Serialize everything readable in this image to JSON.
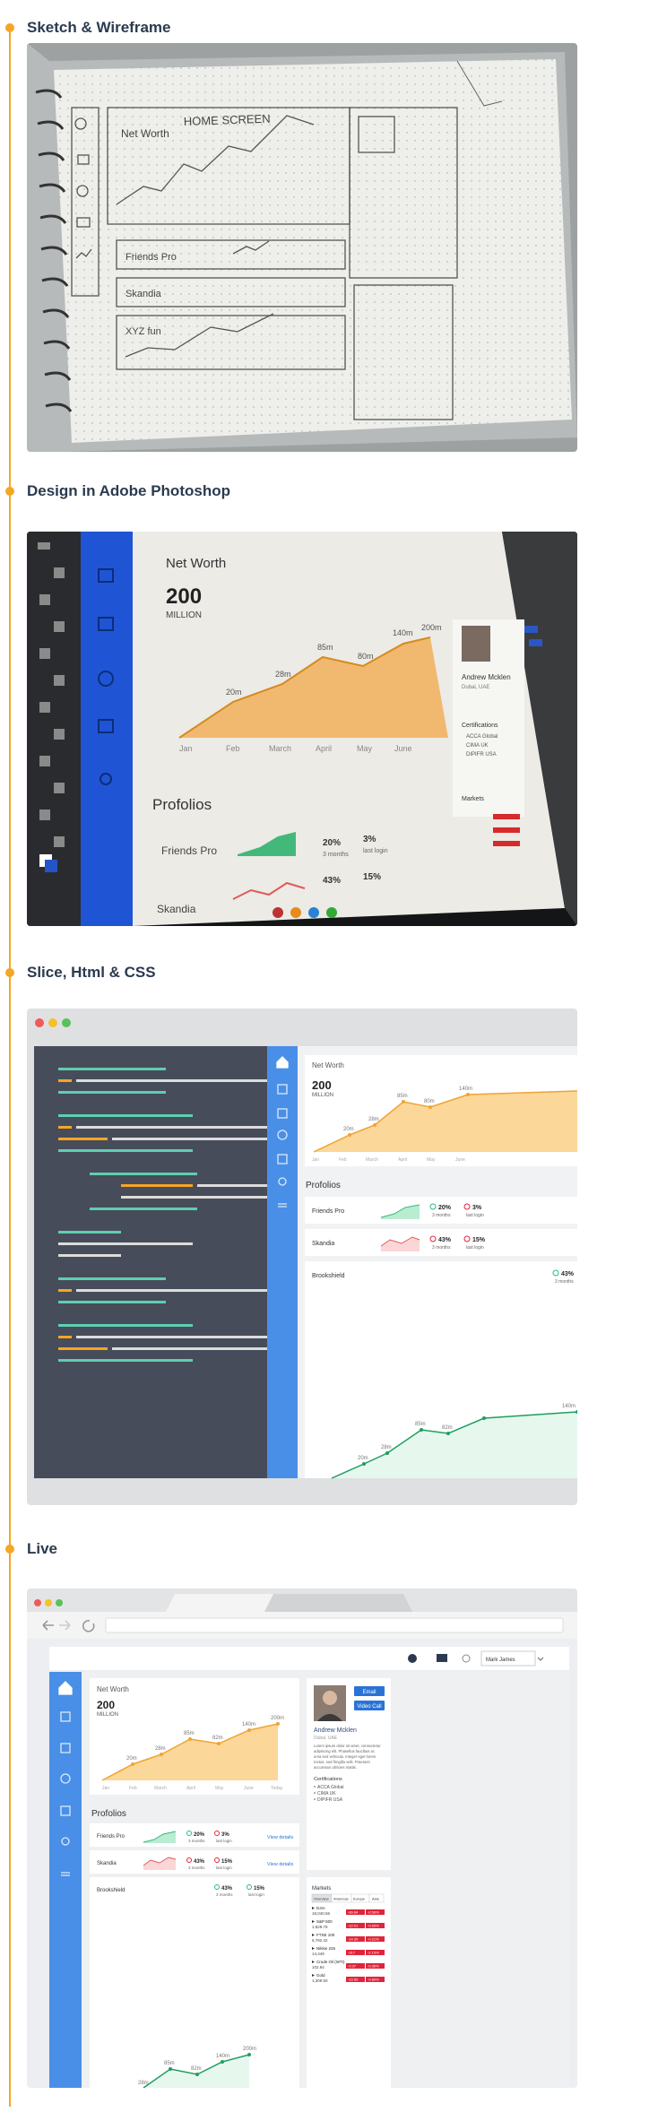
{
  "sections": [
    {
      "title": "Sketch & Wireframe"
    },
    {
      "title": "Design in Adobe Photoshop"
    },
    {
      "title": "Slice, Html & CSS"
    },
    {
      "title": "Live"
    }
  ],
  "colors": {
    "accent": "#f5a623",
    "heading": "#2b3a4f",
    "sidebar_blue": "#4a8fe7",
    "code_bg": "#474c5a",
    "green": "#29b97e",
    "red": "#e0253a"
  },
  "sketch": {
    "notebook_title": "HOME SCREEN",
    "net_worth": "Net Worth",
    "fund": "Friends Pro",
    "skandia": "Skandia",
    "xyz": "XYZ fun"
  },
  "photoshop": {
    "title": "Net Worth",
    "value": "200",
    "unit": "MILLION",
    "points": [
      "20m",
      "28m",
      "85m",
      "80m",
      "140m",
      "200m"
    ],
    "months": [
      "Jan",
      "Feb",
      "March",
      "April",
      "May",
      "June"
    ],
    "portfolios": "Profolios",
    "fund1": "Friends Pro",
    "fund2": "Skandia",
    "pct1": "20%",
    "pct2": "3%",
    "pct3": "43%",
    "pct4": "15%",
    "period": "3 months",
    "lastlogin": "last login",
    "person": "Andrew Mcklen",
    "person_loc": "Dubai, UAE",
    "certs": "Certifications",
    "cert_items": [
      "ACCA Global",
      "CIMA UK",
      "DIPIFR USA"
    ],
    "markets": "Markets"
  },
  "slice": {
    "net_worth": "Net Worth",
    "value": "200",
    "unit": "MILLION",
    "point_labels": [
      "20m",
      "28m",
      "85m",
      "80m",
      "140m"
    ],
    "months": [
      "Jan",
      "Feb",
      "March",
      "April",
      "May",
      "June"
    ],
    "portfolios": "Profolios",
    "funds": [
      {
        "name": "Friends Pro",
        "a": "20%",
        "a_sub": "3 months",
        "b": "3%",
        "b_sub": "last login"
      },
      {
        "name": "Skandia",
        "a": "43%",
        "a_sub": "3 months",
        "b": "15%",
        "b_sub": "last login"
      }
    ],
    "brookshield": {
      "name": "Brookshield",
      "a": "43%",
      "a_sub": "3 months",
      "points": [
        "20m",
        "28m",
        "85m",
        "82m",
        "140m"
      ]
    }
  },
  "live": {
    "user": "Mark James",
    "net_worth": "Net Worth",
    "value": "200",
    "unit": "MILLION",
    "point_labels": [
      "20m",
      "28m",
      "85m",
      "82m",
      "140m",
      "200m"
    ],
    "months": [
      "Jan",
      "Feb",
      "March",
      "April",
      "May",
      "June",
      "Today"
    ],
    "portfolios": "Profolios",
    "funds": [
      {
        "name": "Friends Pro",
        "a": "20%",
        "a_sub": "3 months",
        "b": "3%",
        "b_sub": "last login",
        "link": "View details"
      },
      {
        "name": "Skandia",
        "a": "43%",
        "a_sub": "3 months",
        "b": "15%",
        "b_sub": "last login",
        "link": "View details"
      }
    ],
    "brookshield": {
      "name": "Brookshield",
      "a": "43%",
      "a_sub": "3 months",
      "b": "15%",
      "b_sub": "last login",
      "points": [
        "28m",
        "85m",
        "82m",
        "140m",
        "200m"
      ]
    },
    "profile": {
      "email": "Email",
      "video": "Video Call",
      "name": "Andrew Mcklen",
      "location": "Dubai, UAE",
      "bio": [
        "Lorem ipsum dolor sit amet, consectetur",
        "adipiscing elit. Phasellus faucibus ac",
        "urna sed vehicula. Integer eget lorem",
        "metus, sed fringilla velit. Praesent",
        "accumsan ultricies mattis."
      ],
      "certs_title": "Certifications",
      "certs": [
        "ACCA Global",
        "CIMA UK",
        "DIPIFR USA"
      ]
    },
    "markets": {
      "title": "Markets",
      "tabs": [
        "Overview",
        "Americas",
        "Europe",
        "Asia"
      ],
      "rows": [
        {
          "name": "DJIA",
          "value": "18,040.56",
          "chg": "-89.84",
          "pct": "-0.56%"
        },
        {
          "name": "S&P 500",
          "value": "1,829.75",
          "chg": "-12.01",
          "pct": "-0.65%"
        },
        {
          "name": "FTSE 100",
          "value": "6,782.32",
          "chg": "-14.39",
          "pct": "-0.21%"
        },
        {
          "name": "Nikkei 225",
          "value": "14,449",
          "chg": "-317",
          "pct": "-2.15%"
        },
        {
          "name": "Crude Oil (WTI)",
          "value": "102.94",
          "chg": "-0.37",
          "pct": "-0.36%"
        },
        {
          "name": "Gold",
          "value": "1,309.50",
          "chg": "-10.50",
          "pct": "-0.80%"
        }
      ]
    }
  }
}
